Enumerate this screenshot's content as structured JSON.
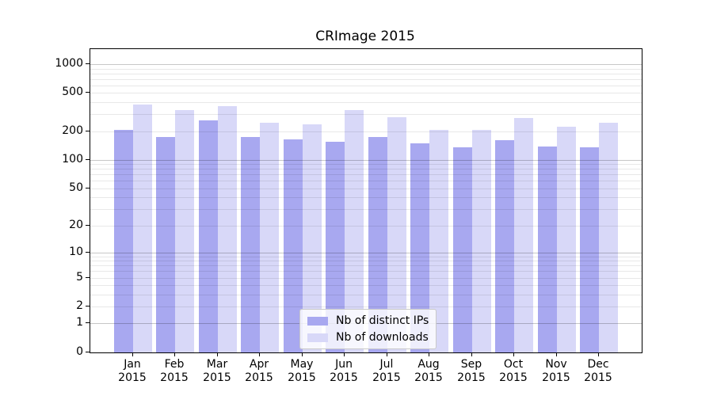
{
  "title": "CRImage 2015",
  "chart_data": {
    "type": "bar",
    "title": "CRImage 2015",
    "yscale": "log10(value+1)",
    "ylim": [
      0,
      1435
    ],
    "yticks": [
      0,
      1,
      2,
      5,
      10,
      20,
      50,
      100,
      200,
      500,
      1000
    ],
    "minor_gridlines": [
      2,
      3,
      4,
      5,
      6,
      7,
      8,
      9,
      20,
      30,
      40,
      50,
      60,
      70,
      80,
      90,
      200,
      300,
      400,
      500,
      600,
      700,
      800,
      900
    ],
    "major_gridlines": [
      1,
      10,
      100,
      1000
    ],
    "categories": [
      "Jan",
      "Feb",
      "Mar",
      "Apr",
      "May",
      "Jun",
      "Jul",
      "Aug",
      "Sep",
      "Oct",
      "Nov",
      "Dec"
    ],
    "x_year_label": "2015",
    "series": [
      {
        "name": "Nb of distinct IPs",
        "color": "#a8a8f0",
        "values": [
          205,
          173,
          259,
          175,
          165,
          156,
          175,
          148,
          136,
          160,
          138,
          136
        ]
      },
      {
        "name": "Nb of downloads",
        "color": "#d8d8f8",
        "values": [
          380,
          331,
          367,
          247,
          237,
          331,
          280,
          206,
          208,
          275,
          224,
          246
        ]
      }
    ],
    "legend_position": "bottom-center",
    "grid": true,
    "axis_color": "#000000",
    "background": "#ffffff"
  }
}
